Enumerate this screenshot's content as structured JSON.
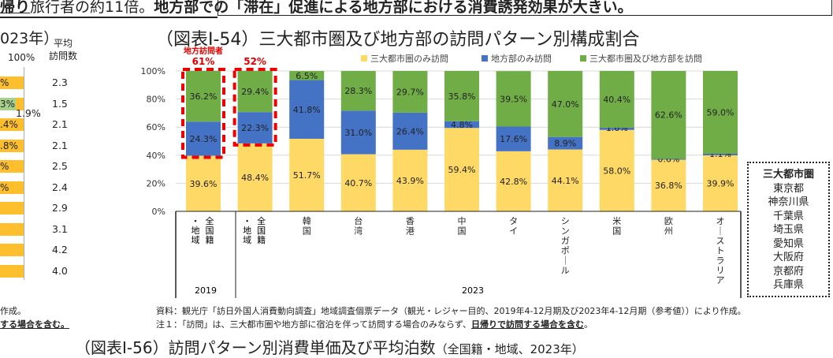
{
  "headline": {
    "part1": "帰り",
    "part2": "旅行者の約11倍。",
    "part3": "地方部での「滞在」促進による地方部における消費誘発効果が大きい。"
  },
  "left_panel": {
    "title_fragment": "023年）",
    "axis_100": "100%",
    "avg_label_1": "平均",
    "avg_label_2": "訪問数",
    "bar_labels": [
      "%",
      "3%",
      ".4%",
      ".8%",
      "%",
      "%",
      "",
      "",
      "",
      ""
    ],
    "extra_label": "1.9%",
    "avg_visits": [
      "2.3",
      "1.5",
      "2.1",
      "2.1",
      "2.5",
      "2.4",
      "2.9",
      "3.1",
      "4.2",
      "4.0"
    ],
    "note1_fragment": "作成。",
    "note2_fragment": "する場合を含む。"
  },
  "chart_data": {
    "type": "bar",
    "stacked": true,
    "title": "（図表Ⅰ-54）三大都市圏及び地方部の訪問パターン別構成割合",
    "categories": [
      "全国籍・地域",
      "全国籍・地域",
      "韓国",
      "台湾",
      "香港",
      "中国",
      "タイ",
      "シンガポール",
      "米国",
      "欧州",
      "オーストラリア"
    ],
    "groups": [
      {
        "label": "2019",
        "count": 1
      },
      {
        "label": "2023",
        "count": 10
      }
    ],
    "series": [
      {
        "name": "三大都市圏のみ訪問",
        "color": "#ffd966",
        "values": [
          39.6,
          48.4,
          51.7,
          40.7,
          43.9,
          59.4,
          42.8,
          44.1,
          58.0,
          36.8,
          39.9
        ]
      },
      {
        "name": "地方部のみ訪問",
        "color": "#4472c4",
        "values": [
          24.3,
          22.3,
          41.8,
          31.0,
          26.4,
          4.8,
          17.6,
          8.9,
          1.6,
          0.6,
          1.1
        ]
      },
      {
        "name": "三大都市圏及び地方部を訪問",
        "color": "#70ad47",
        "values": [
          36.2,
          29.4,
          6.5,
          28.3,
          29.7,
          35.8,
          39.5,
          47.0,
          40.4,
          62.6,
          59.0
        ]
      }
    ],
    "yticks": [
      "0%",
      "20%",
      "40%",
      "60%",
      "80%",
      "100%"
    ],
    "ylim": [
      0,
      100
    ],
    "grid": true,
    "legend": "top",
    "annotation": {
      "label": "地方訪問者",
      "values": [
        "61%",
        "52%"
      ],
      "color": "#e00000"
    }
  },
  "legend_box": {
    "title": "三大都市圏",
    "items": [
      "東京都",
      "神奈川県",
      "千葉県",
      "埼玉県",
      "愛知県",
      "大阪府",
      "京都府",
      "兵庫県"
    ]
  },
  "notes": {
    "source": "資料：観光庁「訪日外国人消費動向調査」地域調査個票データ（観光・レジャー目的、2019年4-12月期及び2023年4-12月期（参考値））により作成。",
    "note1_a": "注１：「訪問」は、三大都市圏や地方部に宿泊を伴って訪問する場合のみならず、",
    "note1_b": "日帰りで訪問する場合を含む",
    "note1_c": "。"
  },
  "bottom_title": {
    "main": "（図表Ⅰ-56）訪問パターン別消費単価及び平均泊数",
    "sub": "（全国籍・地域、2023年）"
  }
}
